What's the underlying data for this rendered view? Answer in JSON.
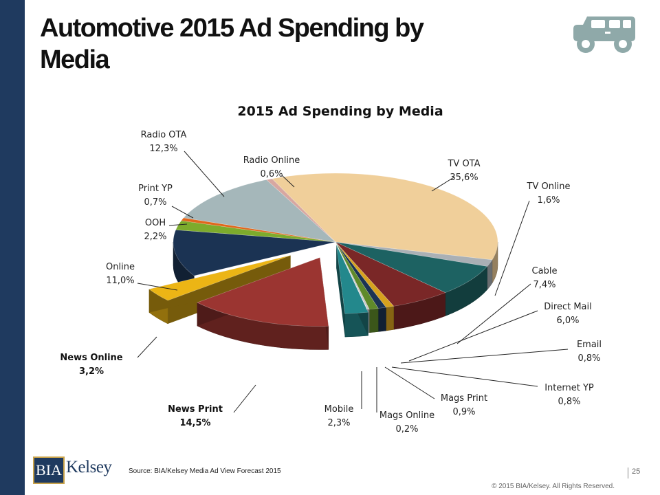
{
  "slide": {
    "title": "Automotive 2015 Ad Spending by Media",
    "source": "Source: BIA/Kelsey Media Ad View Forecast 2015",
    "copyright": "© 2015 BIA/Kelsey. All Rights Reserved.",
    "page_number": "25",
    "logo_box_text": "BIA",
    "logo_word": "Kelsey",
    "icon": "car-icon",
    "colors": {
      "sidebar": "#1f3a5f",
      "icon": "#8fa9a9"
    }
  },
  "chart_data": {
    "type": "pie",
    "title": "2015 Ad Spending by Media",
    "style": "3D exploded pie",
    "slices": [
      {
        "label": "TV OTA",
        "value_text": "35,6%",
        "value": 35.6,
        "color": "#f0cf9a",
        "bold": false
      },
      {
        "label": "TV Online",
        "value_text": "1,6%",
        "value": 1.6,
        "color": "#aab0b5",
        "bold": false
      },
      {
        "label": "Cable",
        "value_text": "7,4%",
        "value": 7.4,
        "color": "#1d6262",
        "bold": false
      },
      {
        "label": "Direct Mail",
        "value_text": "6,0%",
        "value": 6.0,
        "color": "#7a2727",
        "bold": false
      },
      {
        "label": "Email",
        "value_text": "0,8%",
        "value": 0.8,
        "color": "#d6a21e",
        "bold": false
      },
      {
        "label": "Internet YP",
        "value_text": "0,8%",
        "value": 0.8,
        "color": "#1b3353",
        "bold": false
      },
      {
        "label": "Mags Print",
        "value_text": "0,9%",
        "value": 0.9,
        "color": "#5f8a2a",
        "bold": false
      },
      {
        "label": "Mags Online",
        "value_text": "0,2%",
        "value": 0.2,
        "color": "#c8c8c8",
        "bold": false
      },
      {
        "label": "Mobile",
        "value_text": "2,3%",
        "value": 2.3,
        "color": "#23888c",
        "bold": false
      },
      {
        "label": "News Print",
        "value_text": "14,5%",
        "value": 14.5,
        "color": "#9b3531",
        "bold": true
      },
      {
        "label": "News Online",
        "value_text": "3,2%",
        "value": 3.2,
        "color": "#ecb515",
        "bold": true
      },
      {
        "label": "Online",
        "value_text": "11,0%",
        "value": 11.0,
        "color": "#1b3353",
        "bold": false
      },
      {
        "label": "OOH",
        "value_text": "2,2%",
        "value": 2.2,
        "color": "#7dab2c",
        "bold": false
      },
      {
        "label": "Print YP",
        "value_text": "0,7%",
        "value": 0.7,
        "color": "#e0671c",
        "bold": false
      },
      {
        "label": "Radio OTA",
        "value_text": "12,3%",
        "value": 12.3,
        "color": "#a5b7ba",
        "bold": false
      },
      {
        "label": "Radio Online",
        "value_text": "0,6%",
        "value": 0.6,
        "color": "#d7a7a1",
        "bold": false
      }
    ]
  }
}
